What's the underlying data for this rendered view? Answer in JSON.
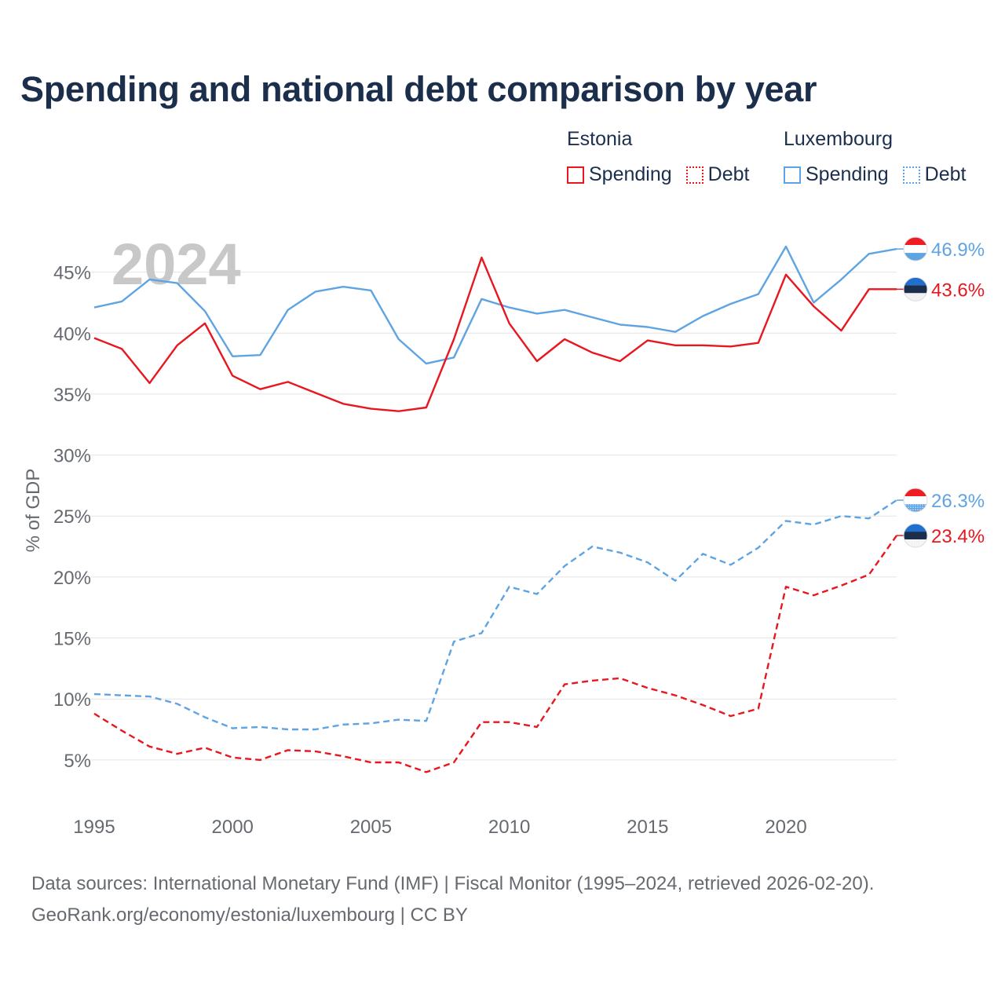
{
  "title": "Spending and national debt comparison by year",
  "legend": {
    "groups": [
      {
        "country": "Estonia",
        "color": "#e8171f",
        "items": [
          "Spending",
          "Debt"
        ]
      },
      {
        "country": "Luxembourg",
        "color": "#5fa4e2",
        "items": [
          "Spending",
          "Debt"
        ]
      }
    ]
  },
  "footer": {
    "line1": "Data sources: International Monetary Fund (IMF) | Fiscal Monitor (1995–2024, retrieved 2026-02-20).",
    "line2": "GeoRank.org/economy/estonia/luxembourg | CC BY"
  },
  "chart_data": {
    "type": "line",
    "year_label": "2024",
    "ylabel": "% of GDP",
    "xlim": [
      1995,
      2024
    ],
    "ylim": [
      1,
      48
    ],
    "x_ticks": [
      1995,
      2000,
      2005,
      2010,
      2015,
      2020
    ],
    "y_ticks": [
      5,
      10,
      15,
      20,
      25,
      30,
      35,
      40,
      45
    ],
    "y_tick_labels": [
      "5%",
      "10%",
      "15%",
      "20%",
      "25%",
      "30%",
      "35%",
      "40%",
      "45%"
    ],
    "x": [
      1995,
      1996,
      1997,
      1998,
      1999,
      2000,
      2001,
      2002,
      2003,
      2004,
      2005,
      2006,
      2007,
      2008,
      2009,
      2010,
      2011,
      2012,
      2013,
      2014,
      2015,
      2016,
      2017,
      2018,
      2019,
      2020,
      2021,
      2022,
      2023,
      2024
    ],
    "series": [
      {
        "name": "Luxembourg Spending",
        "country": "Luxembourg",
        "kind": "Spending",
        "color": "#5fa4e2",
        "dashed": false,
        "end_label": "46.9%",
        "values": [
          42.1,
          42.6,
          44.4,
          44.1,
          41.8,
          38.1,
          38.2,
          41.9,
          43.4,
          43.8,
          43.5,
          39.5,
          37.5,
          38.0,
          42.8,
          42.1,
          41.6,
          41.9,
          41.3,
          40.7,
          40.5,
          40.1,
          41.4,
          42.4,
          43.2,
          47.1,
          42.5,
          44.4,
          46.5,
          46.9
        ]
      },
      {
        "name": "Estonia Spending",
        "country": "Estonia",
        "kind": "Spending",
        "color": "#e8171f",
        "dashed": false,
        "end_label": "43.6%",
        "values": [
          39.6,
          38.7,
          35.9,
          39.0,
          40.8,
          36.5,
          35.4,
          36.0,
          35.1,
          34.2,
          33.8,
          33.6,
          33.9,
          39.5,
          46.2,
          40.8,
          37.7,
          39.5,
          38.4,
          37.7,
          39.4,
          39.0,
          39.0,
          38.9,
          39.2,
          44.8,
          42.2,
          40.2,
          43.6,
          43.6
        ]
      },
      {
        "name": "Luxembourg Debt",
        "country": "Luxembourg",
        "kind": "Debt",
        "color": "#5fa4e2",
        "dashed": true,
        "end_label": "26.3%",
        "values": [
          10.4,
          10.3,
          10.2,
          9.6,
          8.5,
          7.6,
          7.7,
          7.5,
          7.5,
          7.9,
          8.0,
          8.3,
          8.2,
          14.7,
          15.4,
          19.2,
          18.6,
          20.9,
          22.5,
          22.0,
          21.2,
          19.7,
          21.9,
          21.0,
          22.4,
          24.6,
          24.3,
          25.0,
          24.8,
          26.3
        ]
      },
      {
        "name": "Estonia Debt",
        "country": "Estonia",
        "kind": "Debt",
        "color": "#e8171f",
        "dashed": true,
        "end_label": "23.4%",
        "values": [
          8.8,
          7.4,
          6.1,
          5.5,
          6.0,
          5.2,
          5.0,
          5.8,
          5.7,
          5.3,
          4.8,
          4.8,
          4.0,
          4.8,
          8.1,
          8.1,
          7.7,
          11.2,
          11.5,
          11.7,
          10.9,
          10.3,
          9.5,
          8.6,
          9.2,
          19.2,
          18.5,
          19.3,
          20.2,
          23.4
        ]
      }
    ]
  }
}
